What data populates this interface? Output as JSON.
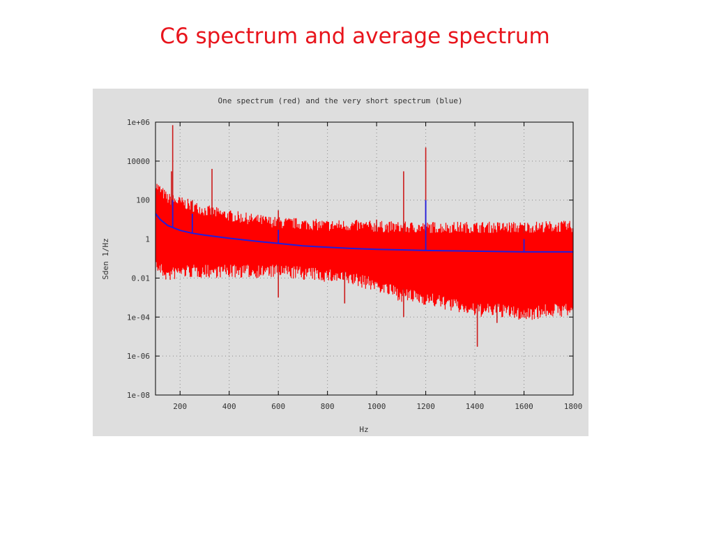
{
  "slide": {
    "title": "C6 spectrum and average spectrum"
  },
  "chart_data": {
    "type": "line",
    "title": "One spectrum (red) and the very short spectrum (blue)",
    "xlabel": "Hz",
    "ylabel": "Sden 1/Hz",
    "xlim": [
      100,
      1800
    ],
    "ylim": [
      1e-08,
      1000000.0
    ],
    "yscale": "log",
    "grid": true,
    "x_ticks": [
      200,
      400,
      600,
      800,
      1000,
      1200,
      1400,
      1600,
      1800
    ],
    "y_ticks": [
      {
        "value": 1000000.0,
        "label": "1e+06"
      },
      {
        "value": 10000.0,
        "label": "10000"
      },
      {
        "value": 100,
        "label": "100"
      },
      {
        "value": 1,
        "label": "1"
      },
      {
        "value": 0.01,
        "label": "0.01"
      },
      {
        "value": 0.0001,
        "label": "1e-04"
      },
      {
        "value": 1e-06,
        "label": "1e-06"
      },
      {
        "value": 1e-08,
        "label": "1e-08"
      }
    ],
    "colors": {
      "red_series": "#ff0000",
      "dark_red_series": "#cc1a1a",
      "blue_series": "#1e1ee0"
    },
    "series": [
      {
        "name": "One spectrum (red)",
        "band": {
          "x": [
            100,
            150,
            200,
            300,
            400,
            500,
            600,
            700,
            800,
            900,
            1000,
            1100,
            1200,
            1300,
            1400,
            1500,
            1600,
            1700,
            1800
          ],
          "upper": [
            300,
            60,
            40,
            15,
            8,
            5,
            3.5,
            3,
            2.5,
            2.5,
            2.2,
            2,
            2,
            2,
            2,
            2,
            2,
            2.2,
            2.2
          ],
          "lower": [
            0.1,
            0.03,
            0.05,
            0.05,
            0.05,
            0.05,
            0.05,
            0.04,
            0.03,
            0.02,
            0.01,
            0.003,
            0.002,
            0.001,
            0.0005,
            0.0005,
            0.0003,
            0.0005,
            0.0005
          ]
        },
        "peaks": [
          {
            "x": 115,
            "y": 300
          },
          {
            "x": 165,
            "y": 3000
          },
          {
            "x": 170,
            "y": 700000
          },
          {
            "x": 250,
            "y": 100
          },
          {
            "x": 330,
            "y": 4000
          },
          {
            "x": 600,
            "y": 30
          },
          {
            "x": 1000,
            "y": 10
          },
          {
            "x": 1110,
            "y": 3000
          },
          {
            "x": 1200,
            "y": 50000
          },
          {
            "x": 1600,
            "y": 5
          }
        ],
        "dips": [
          {
            "x": 600,
            "y": 0.001
          },
          {
            "x": 870,
            "y": 0.0005
          },
          {
            "x": 1110,
            "y": 0.0001
          },
          {
            "x": 1410,
            "y": 3e-06
          },
          {
            "x": 1490,
            "y": 5e-05
          }
        ]
      },
      {
        "name": "very short spectrum (blue)",
        "x": [
          100,
          120,
          150,
          200,
          250,
          300,
          400,
          500,
          600,
          700,
          800,
          900,
          1000,
          1100,
          1200,
          1300,
          1400,
          1500,
          1600,
          1700,
          1800
        ],
        "y": [
          20,
          10,
          5,
          2.8,
          2.0,
          1.6,
          1.1,
          0.8,
          0.6,
          0.45,
          0.38,
          0.33,
          0.3,
          0.28,
          0.26,
          0.25,
          0.24,
          0.23,
          0.22,
          0.22,
          0.22
        ],
        "peaks": [
          {
            "x": 170,
            "y": 100
          },
          {
            "x": 250,
            "y": 20
          },
          {
            "x": 600,
            "y": 3
          },
          {
            "x": 1200,
            "y": 100
          },
          {
            "x": 1600,
            "y": 1
          }
        ]
      }
    ]
  }
}
